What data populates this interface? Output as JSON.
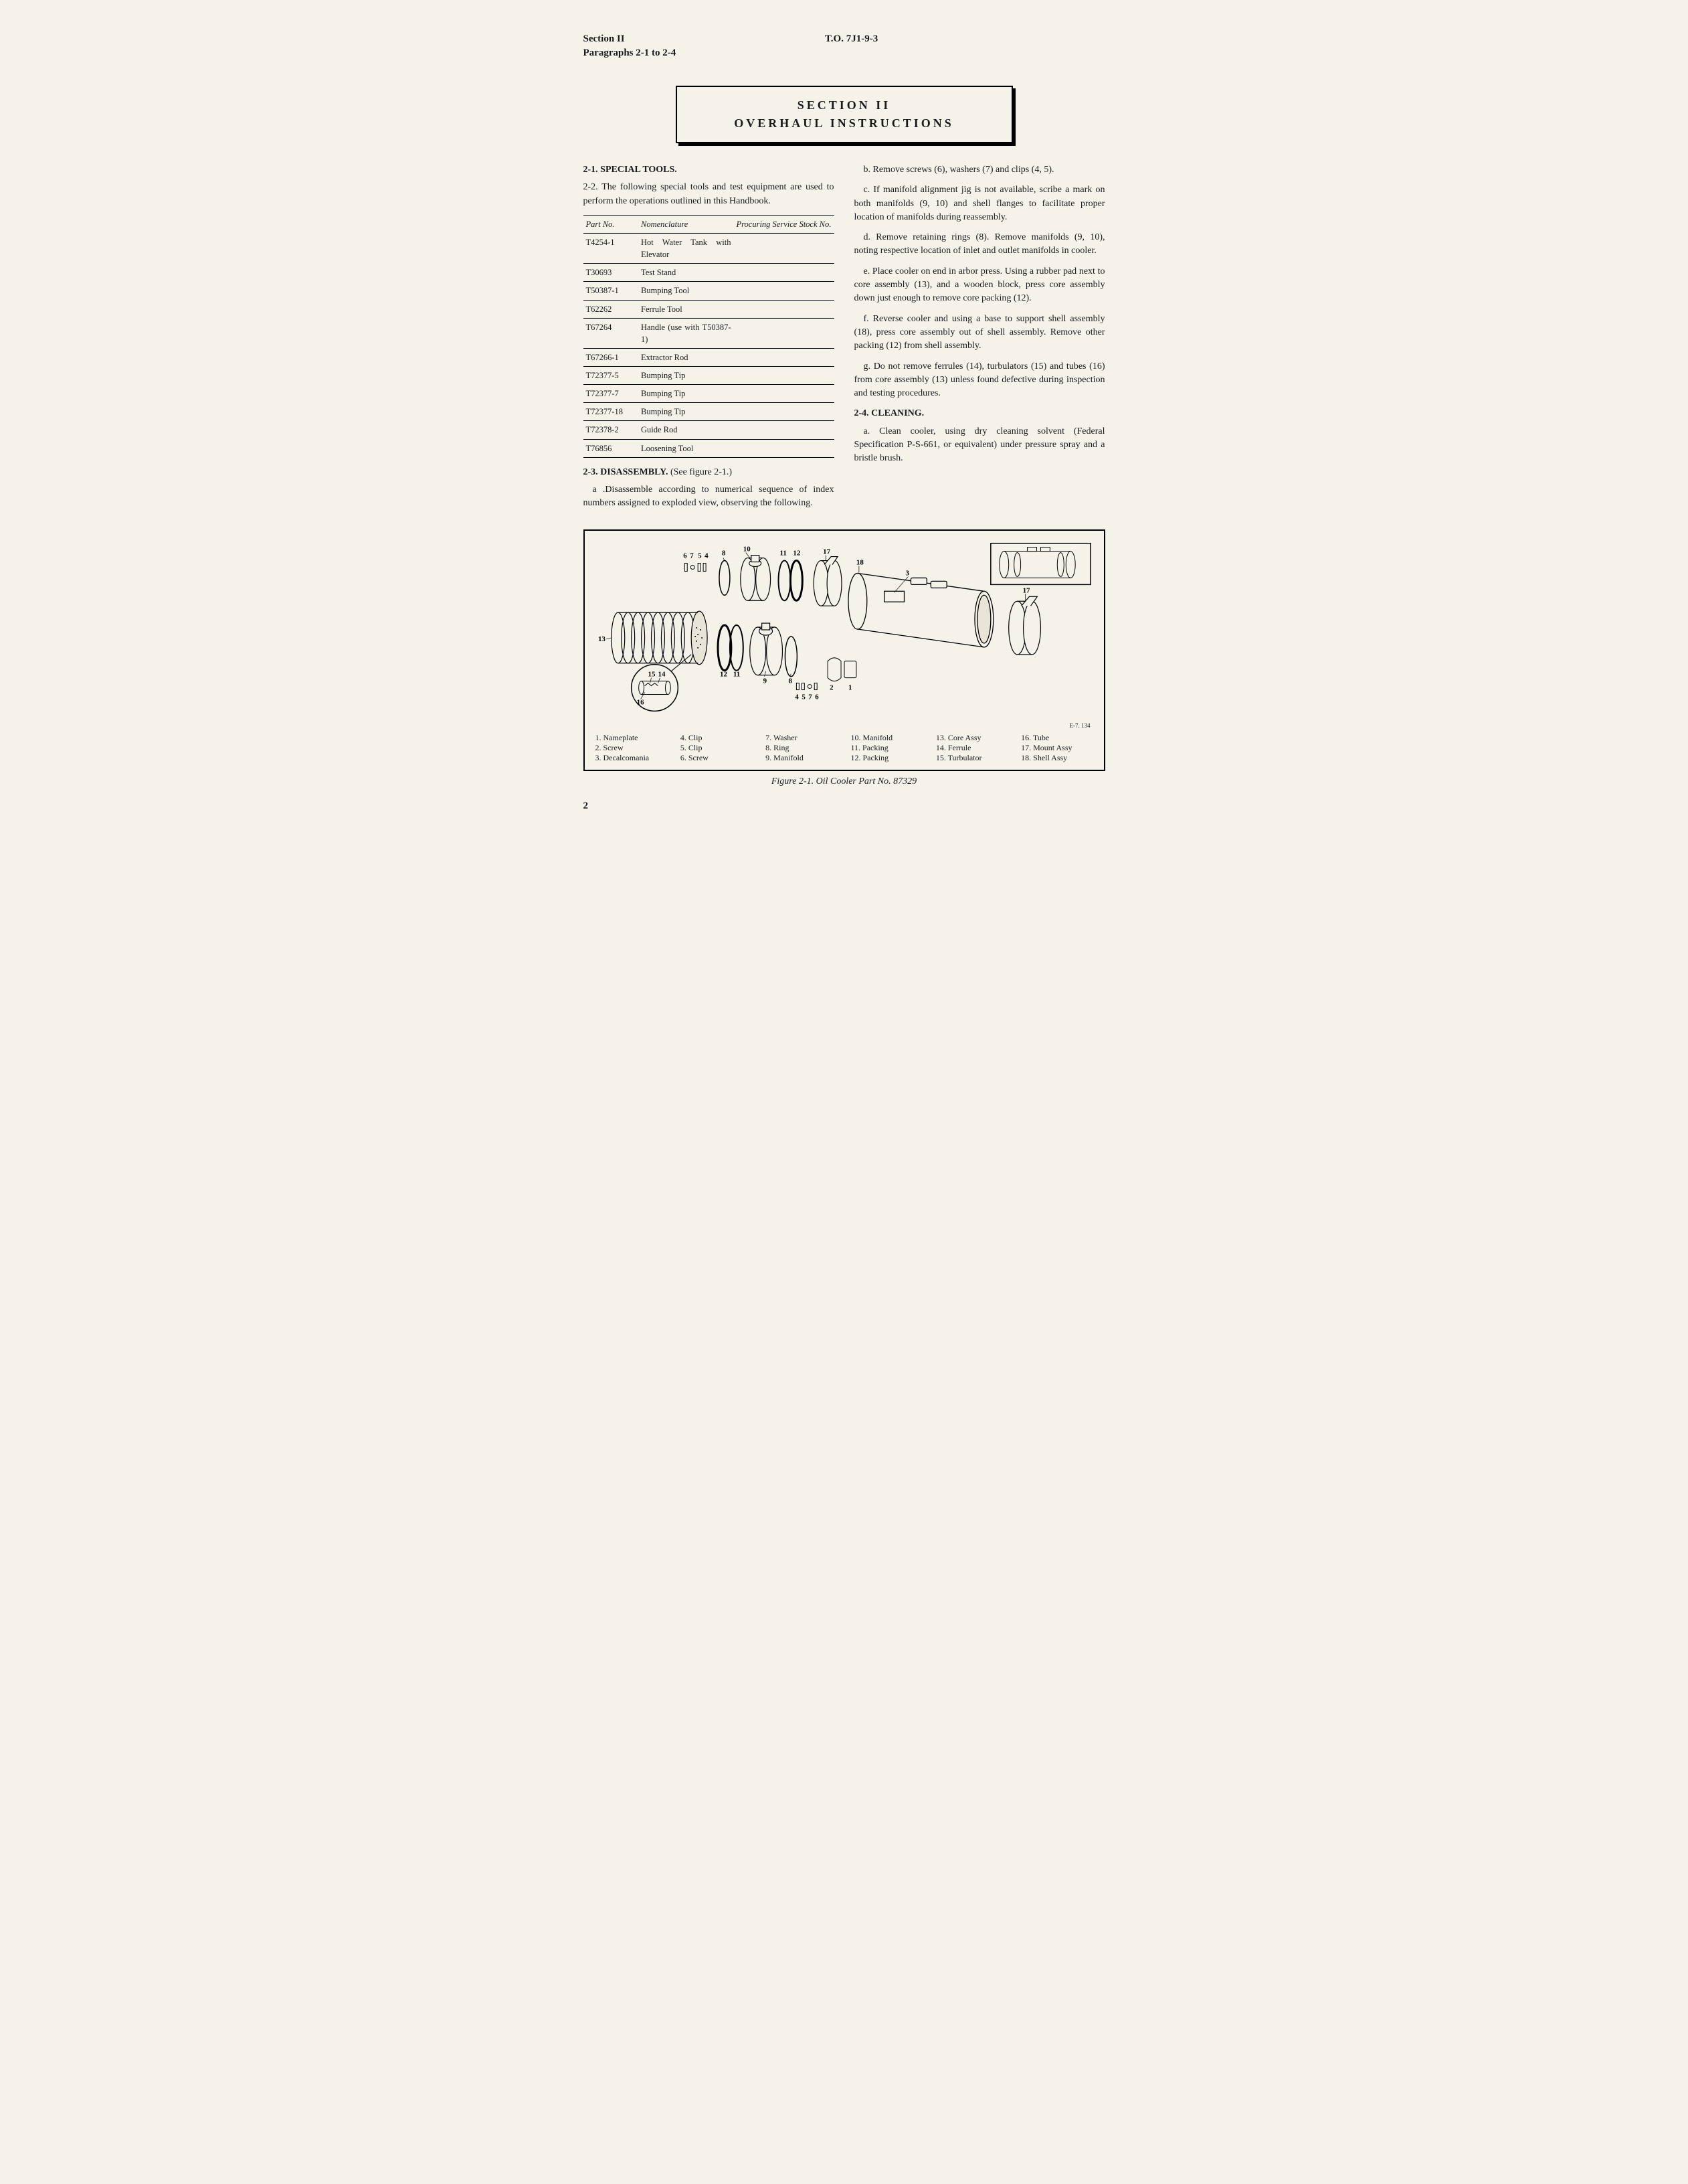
{
  "header": {
    "section_label": "Section II",
    "paragraphs_label": "Paragraphs 2-1 to 2-4",
    "doc_number": "T.O. 7J1-9-3"
  },
  "section_title": {
    "line1": "SECTION II",
    "line2": "OVERHAUL INSTRUCTIONS"
  },
  "left_col": {
    "h1": "2-1. SPECIAL TOOLS.",
    "p1": "2-2. The following special tools and test equipment are used to perform the operations outlined in this Handbook.",
    "table_headers": {
      "c1": "Part No.",
      "c2": "Nomenclature",
      "c3": "Procuring Service Stock No."
    },
    "tools": [
      {
        "pn": "T4254-1",
        "nom": "Hot Water Tank with Elevator",
        "stk": ""
      },
      {
        "pn": "T30693",
        "nom": "Test Stand",
        "stk": ""
      },
      {
        "pn": "T50387-1",
        "nom": "Bumping Tool",
        "stk": ""
      },
      {
        "pn": "T62262",
        "nom": "Ferrule Tool",
        "stk": ""
      },
      {
        "pn": "T67264",
        "nom": "Handle (use with T50387-1)",
        "stk": ""
      },
      {
        "pn": "T67266-1",
        "nom": "Extractor Rod",
        "stk": ""
      },
      {
        "pn": "T72377-5",
        "nom": "Bumping Tip",
        "stk": ""
      },
      {
        "pn": "T72377-7",
        "nom": "Bumping Tip",
        "stk": ""
      },
      {
        "pn": "T72377-18",
        "nom": "Bumping Tip",
        "stk": ""
      },
      {
        "pn": "T72378-2",
        "nom": "Guide Rod",
        "stk": ""
      },
      {
        "pn": "T76856",
        "nom": "Loosening Tool",
        "stk": ""
      }
    ],
    "h2": "2-3. DISASSEMBLY. ",
    "h2_ref": "(See figure 2-1.)",
    "p2": "a .Disassemble according to numerical sequence of index numbers assigned to exploded view, observing the following."
  },
  "right_col": {
    "p1": "b. Remove screws (6), washers (7) and clips (4, 5).",
    "p2": "c. If manifold alignment jig is not available, scribe a mark on both manifolds (9, 10) and shell flanges to facilitate proper location of manifolds during reassembly.",
    "p3": "d. Remove retaining rings (8). Remove manifolds (9, 10), noting respective location of inlet and outlet manifolds in cooler.",
    "p4": "e. Place cooler on end in arbor press. Using a rubber pad next to core assembly (13), and a wooden block, press core assembly down just enough to remove core packing (12).",
    "p5": "f. Reverse cooler and using a base to support shell assembly (18), press core assembly out of shell assembly. Remove other packing (12) from shell assembly.",
    "p6": "g. Do not remove ferrules (14), turbulators (15) and tubes (16) from core assembly (13) unless found defective during inspection and testing procedures.",
    "h1": "2-4. CLEANING.",
    "p7": "a. Clean cooler, using dry cleaning solvent (Federal Specification P-S-661, or equivalent) under pressure spray and a bristle brush."
  },
  "figure": {
    "callouts": {
      "c1": "1",
      "c2": "2",
      "c3": "3",
      "c4": "4",
      "c5": "5",
      "c6": "6",
      "c7": "7",
      "c8": "8",
      "c9": "9",
      "c10": "10",
      "c11": "11",
      "c12": "12",
      "c13": "13",
      "c14": "14",
      "c15": "15",
      "c16": "16",
      "c17": "17",
      "c18": "18"
    },
    "legend": [
      {
        "n": "1.",
        "t": "Nameplate"
      },
      {
        "n": "2.",
        "t": "Screw"
      },
      {
        "n": "3.",
        "t": "Decalcomania"
      },
      {
        "n": "4.",
        "t": "Clip"
      },
      {
        "n": "5.",
        "t": "Clip"
      },
      {
        "n": "6.",
        "t": "Screw"
      },
      {
        "n": "7.",
        "t": "Washer"
      },
      {
        "n": "8.",
        "t": "Ring"
      },
      {
        "n": "9.",
        "t": "Manifold"
      },
      {
        "n": "10.",
        "t": "Manifold"
      },
      {
        "n": "11.",
        "t": "Packing"
      },
      {
        "n": "12.",
        "t": "Packing"
      },
      {
        "n": "13.",
        "t": "Core Assy"
      },
      {
        "n": "14.",
        "t": "Ferrule"
      },
      {
        "n": "15.",
        "t": "Turbulator"
      },
      {
        "n": "16.",
        "t": "Tube"
      },
      {
        "n": "17.",
        "t": "Mount Assy"
      },
      {
        "n": "18.",
        "t": "Shell Assy"
      }
    ],
    "code": "E-7. 134",
    "caption": "Figure 2-1.  Oil Cooler Part No. 87329"
  },
  "page_number": "2",
  "colors": {
    "bg": "#f5f2ea",
    "text": "#1a1a1a",
    "border": "#000000"
  }
}
